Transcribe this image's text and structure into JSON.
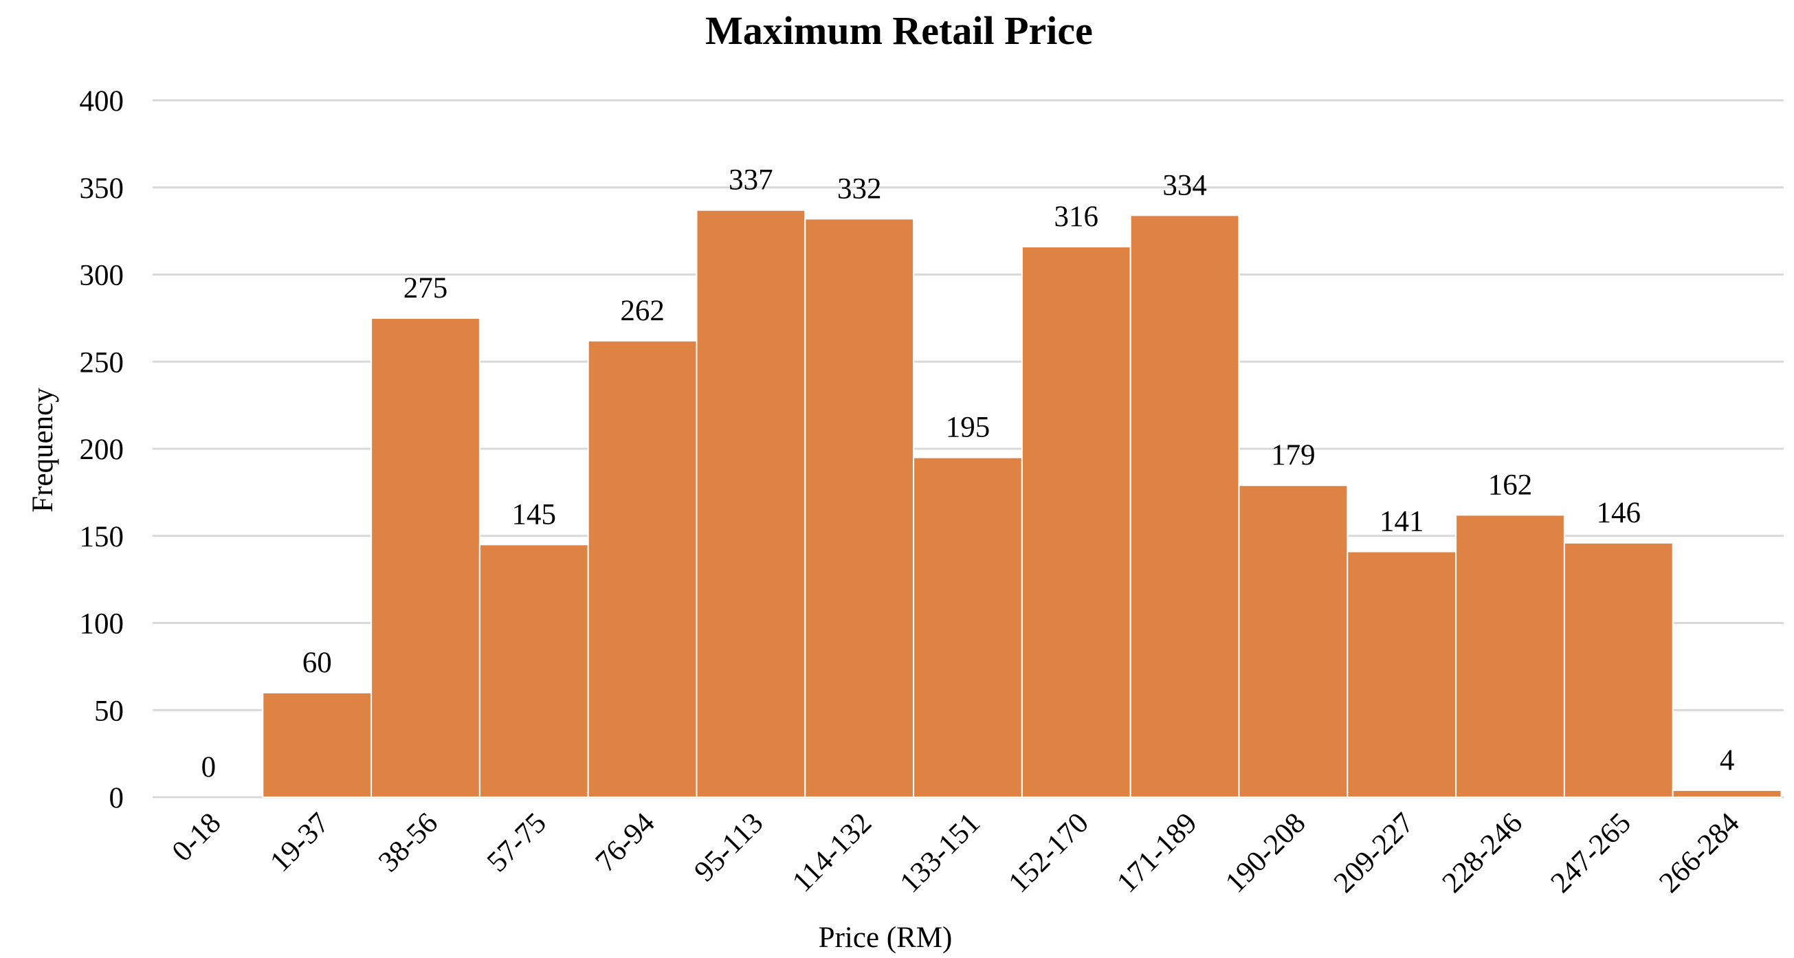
{
  "chart_data": {
    "type": "bar",
    "title": "Maximum Retail Price",
    "xlabel": "Price (RM)",
    "ylabel": "Frequency",
    "categories": [
      "0-18",
      "19-37",
      "38-56",
      "57-75",
      "76-94",
      "95-113",
      "114-132",
      "133-151",
      "152-170",
      "171-189",
      "190-208",
      "209-227",
      "228-246",
      "247-265",
      "266-284"
    ],
    "values": [
      0,
      60,
      275,
      145,
      262,
      337,
      332,
      195,
      316,
      334,
      179,
      141,
      162,
      146,
      4
    ],
    "data_labels": [
      "0",
      "60",
      "275",
      "145",
      "262",
      "337",
      "332",
      "195",
      "316",
      "334",
      "179",
      "141",
      "162",
      "146",
      "4"
    ],
    "ylim": [
      0,
      400
    ],
    "yticks": [
      0,
      50,
      100,
      150,
      200,
      250,
      300,
      350,
      400
    ],
    "ytick_labels": [
      "0",
      "50",
      "100",
      "150",
      "200",
      "250",
      "300",
      "350",
      "400"
    ],
    "grid": true,
    "legend": "none",
    "bar_color": "#df8344",
    "grid_color": "#d9d9d9"
  }
}
